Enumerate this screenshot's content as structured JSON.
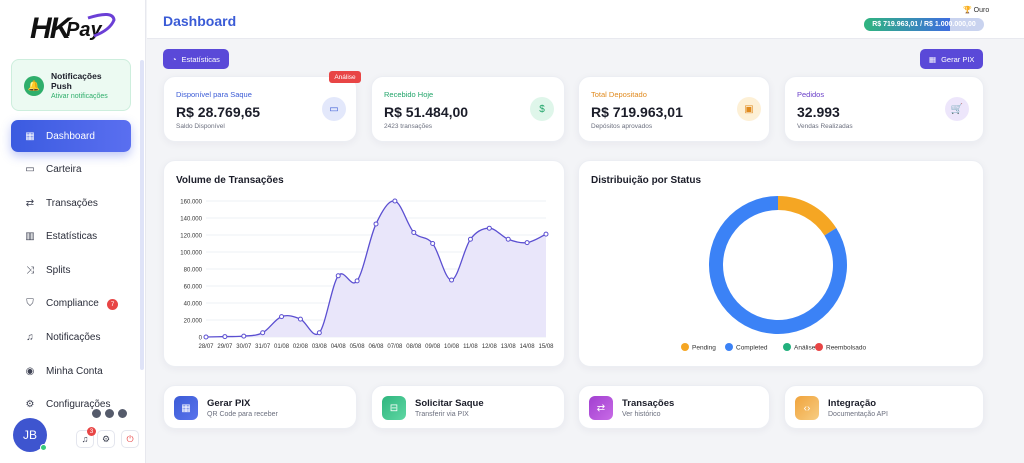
{
  "brand": {
    "logo_text": "HKPay"
  },
  "notification_card": {
    "title": "Notificações Push",
    "action": "Ativar notificações"
  },
  "sidebar": {
    "items": [
      {
        "label": "Dashboard",
        "icon": "grid-icon",
        "active": true
      },
      {
        "label": "Carteira",
        "icon": "wallet-icon"
      },
      {
        "label": "Transações",
        "icon": "exchange-icon"
      },
      {
        "label": "Estatísticas",
        "icon": "bar-chart-icon"
      },
      {
        "label": "Splits",
        "icon": "shuffle-icon"
      },
      {
        "label": "Compliance",
        "icon": "shield-icon",
        "badge": "7"
      },
      {
        "label": "Notificações",
        "icon": "bell-icon"
      },
      {
        "label": "Minha Conta",
        "icon": "user-icon"
      },
      {
        "label": "Configurações",
        "icon": "gear-icon"
      }
    ]
  },
  "user": {
    "initials": "JB",
    "notif_count": "3"
  },
  "header": {
    "title": "Dashboard",
    "tier": "Ouro",
    "progress_text": "R$ 719.963,01 / R$ 1.000.000,00",
    "progress_fraction": 0.72
  },
  "toolbar": {
    "stats_label": "Estatísticas",
    "pix_label": "Gerar PIX"
  },
  "stats": [
    {
      "label": "Disponível para Saque",
      "value": "R$ 28.769,65",
      "sub": "Saldo Disponível",
      "tag": "Análise",
      "color": "#3b5bd6",
      "icon_bg": "#e3e8fb"
    },
    {
      "label": "Recebido Hoje",
      "value": "R$ 51.484,00",
      "sub": "2423 transações",
      "color": "#22a56a",
      "icon_bg": "#dff6ea"
    },
    {
      "label": "Total Depositado",
      "value": "R$ 719.963,01",
      "sub": "Depósitos aprovados",
      "color": "#e08a1e",
      "icon_bg": "#fdf0d6"
    },
    {
      "label": "Pedidos",
      "value": "32.993",
      "sub": "Vendas Realizadas",
      "color": "#6a3fc9",
      "icon_bg": "#ede6fb"
    }
  ],
  "charts": {
    "volume_title": "Volume de Transações",
    "status_title": "Distribuição por Status"
  },
  "chart_data": [
    {
      "type": "area",
      "title": "Volume de Transações",
      "x": [
        "28/07",
        "29/07",
        "30/07",
        "31/07",
        "01/08",
        "02/08",
        "03/08",
        "04/08",
        "05/08",
        "06/08",
        "07/08",
        "08/08",
        "09/08",
        "10/08",
        "11/08",
        "12/08",
        "13/08",
        "14/08",
        "15/08"
      ],
      "values": [
        0,
        500,
        1000,
        5000,
        24000,
        21000,
        5000,
        72000,
        66000,
        133000,
        160000,
        123000,
        110000,
        67000,
        115000,
        128000,
        115000,
        111000,
        121000
      ],
      "ylim": [
        0,
        160000
      ],
      "yticks": [
        "0",
        "20.000",
        "40.000",
        "60.000",
        "80.000",
        "100.000",
        "120.000",
        "140.000",
        "160.000"
      ],
      "grid": true,
      "color": "#5b4fd1"
    },
    {
      "type": "pie",
      "title": "Distribuição por Status",
      "categories": [
        "Pending",
        "Completed",
        "Análise",
        "Reembolsado"
      ],
      "values": [
        16,
        84,
        0,
        0
      ],
      "colors": [
        "#f5a623",
        "#3b82f6",
        "#22b07d",
        "#e84545"
      ],
      "legend": "bottom"
    }
  ],
  "quick_actions": [
    {
      "title": "Gerar PIX",
      "sub": "QR Code para receber",
      "icon": "qr-code-icon",
      "color": "#3b5bd6"
    },
    {
      "title": "Solicitar Saque",
      "sub": "Transferir via PIX",
      "icon": "withdraw-icon",
      "color": "#2fb57e"
    },
    {
      "title": "Transações",
      "sub": "Ver histórico",
      "icon": "exchange-icon",
      "color": "#a13fd0"
    },
    {
      "title": "Integração",
      "sub": "Documentação API",
      "icon": "code-icon",
      "color": "#f0a33c"
    }
  ]
}
